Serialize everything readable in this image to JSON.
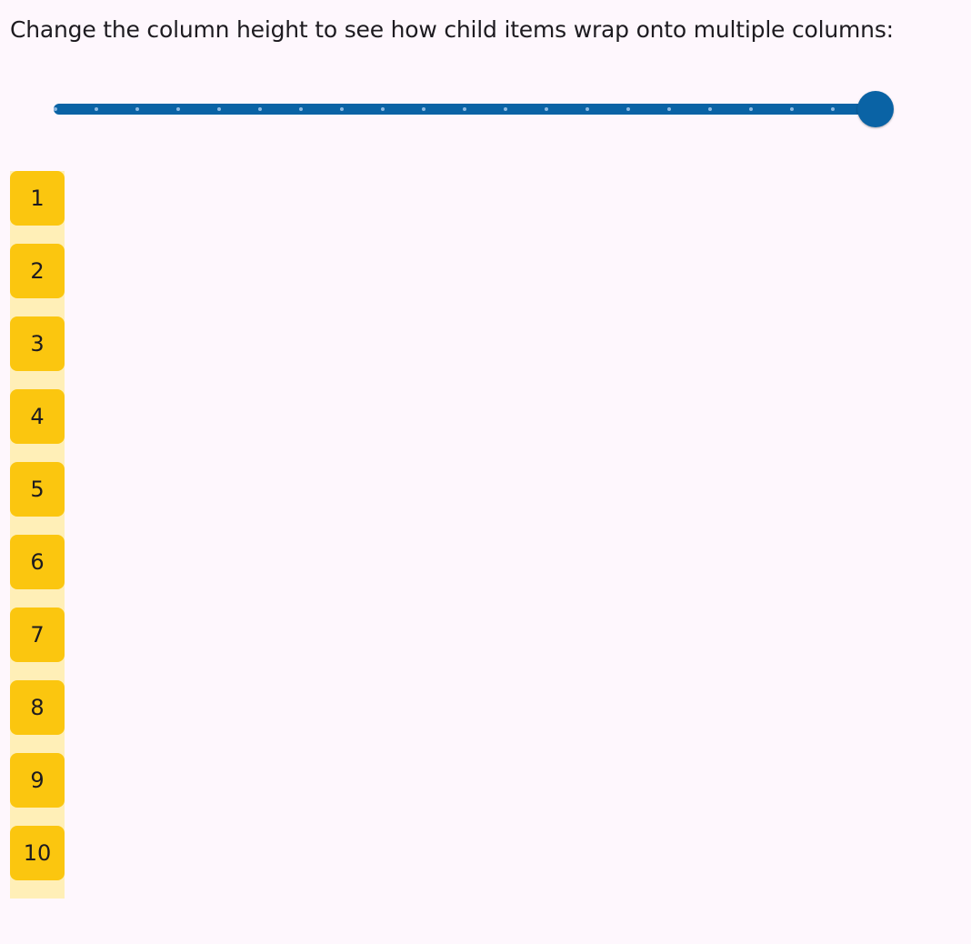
{
  "prompt": "Change the column height to see how child items wrap onto multiple columns:",
  "slider": {
    "value_fraction": 1.0,
    "divisions": 20,
    "color": "#0a63a5"
  },
  "items": [
    "1",
    "2",
    "3",
    "4",
    "5",
    "6",
    "7",
    "8",
    "9",
    "10"
  ],
  "colors": {
    "tile": "#fbc60f",
    "column_bg": "#ffefb7",
    "background": "#fef7fd"
  }
}
